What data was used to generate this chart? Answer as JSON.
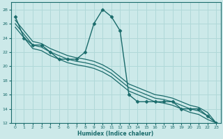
{
  "xlabel": "Humidex (Indice chaleur)",
  "ylabel": "",
  "bg_color": "#cce9e9",
  "grid_color": "#b0d8d8",
  "line_color": "#1a6b6b",
  "xlim": [
    -0.5,
    23.5
  ],
  "ylim": [
    12,
    29
  ],
  "xticks": [
    0,
    1,
    2,
    3,
    4,
    5,
    6,
    7,
    8,
    9,
    10,
    11,
    12,
    13,
    14,
    15,
    16,
    17,
    18,
    19,
    20,
    21,
    22,
    23
  ],
  "yticks": [
    12,
    14,
    16,
    18,
    20,
    22,
    24,
    26,
    28
  ],
  "series": [
    {
      "x": [
        0,
        1,
        2,
        3,
        4,
        5,
        6,
        7,
        8,
        9,
        10,
        11,
        12,
        13,
        14,
        15,
        16,
        17,
        18,
        19,
        20,
        21,
        22,
        23
      ],
      "y": [
        27,
        24,
        23,
        23,
        22,
        21,
        21,
        21,
        22,
        26,
        28,
        27,
        25,
        16,
        15,
        15,
        15,
        15,
        15,
        14,
        14,
        14,
        13,
        12
      ],
      "marker": "D",
      "markersize": 2.5,
      "linewidth": 1.0
    },
    {
      "x": [
        0,
        1,
        2,
        3,
        4,
        5,
        6,
        7,
        8,
        9,
        10,
        11,
        12,
        13,
        14,
        15,
        16,
        17,
        18,
        19,
        20,
        21,
        22,
        23
      ],
      "y": [
        26.5,
        25.0,
        23.5,
        23.2,
        22.5,
        22.0,
        21.5,
        21.2,
        21.0,
        20.7,
        20.2,
        19.5,
        18.5,
        17.5,
        17.0,
        16.5,
        16.0,
        15.8,
        15.5,
        15.0,
        14.5,
        14.2,
        13.5,
        12.0
      ],
      "marker": null,
      "markersize": 0,
      "linewidth": 0.9
    },
    {
      "x": [
        0,
        1,
        2,
        3,
        4,
        5,
        6,
        7,
        8,
        9,
        10,
        11,
        12,
        13,
        14,
        15,
        16,
        17,
        18,
        19,
        20,
        21,
        22,
        23
      ],
      "y": [
        26.0,
        24.5,
        23.0,
        22.7,
        22.0,
        21.5,
        21.0,
        20.7,
        20.5,
        20.2,
        19.7,
        19.0,
        18.0,
        17.0,
        16.5,
        16.0,
        15.5,
        15.3,
        15.0,
        14.5,
        14.0,
        13.7,
        13.0,
        12.0
      ],
      "marker": null,
      "markersize": 0,
      "linewidth": 0.9
    },
    {
      "x": [
        0,
        1,
        2,
        3,
        4,
        5,
        6,
        7,
        8,
        9,
        10,
        11,
        12,
        13,
        14,
        15,
        16,
        17,
        18,
        19,
        20,
        21,
        22,
        23
      ],
      "y": [
        25.5,
        24.0,
        22.5,
        22.2,
        21.5,
        21.0,
        20.5,
        20.2,
        20.0,
        19.7,
        19.2,
        18.5,
        17.5,
        16.5,
        16.0,
        15.5,
        15.0,
        14.8,
        14.5,
        14.0,
        13.5,
        13.2,
        12.5,
        12.0
      ],
      "marker": null,
      "markersize": 0,
      "linewidth": 0.9
    }
  ]
}
